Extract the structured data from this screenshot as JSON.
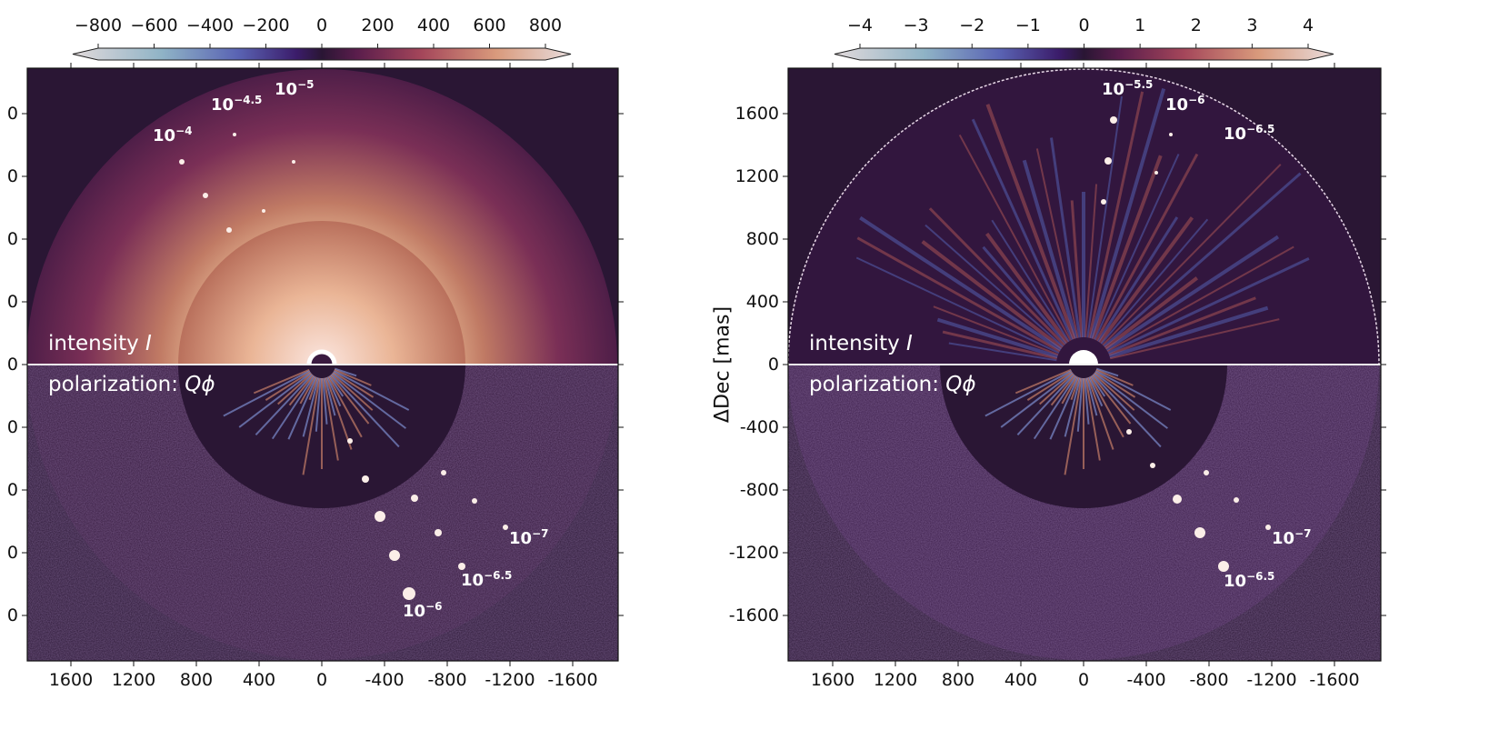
{
  "chart_data": [
    {
      "type": "heatmap",
      "panel": "left",
      "colorbar": {
        "ticks": [
          "−800",
          "−600",
          "−400",
          "−200",
          "0",
          "200",
          "400",
          "600",
          "800"
        ],
        "range": [
          -800,
          800
        ],
        "extend": "both",
        "colormap": "twilight_shifted"
      },
      "xticks": [
        "1600",
        "1200",
        "800",
        "400",
        "0",
        "-400",
        "-800",
        "-1200",
        "-1600"
      ],
      "yticks": [
        "0",
        "0",
        "0",
        "0",
        "0",
        "0",
        "0",
        "0",
        "0"
      ],
      "xlim": [
        1880,
        -1880
      ],
      "ylim": [
        -1880,
        1880
      ],
      "labels": {
        "top": "intensity ",
        "top_italic": "I",
        "bottom": "polarization: ",
        "bottom_italic": "Qϕ"
      },
      "annotations": [
        {
          "base": "10",
          "exp": "−4"
        },
        {
          "base": "10",
          "exp": "−4.5"
        },
        {
          "base": "10",
          "exp": "−5"
        },
        {
          "base": "10",
          "exp": "−7"
        },
        {
          "base": "10",
          "exp": "−6.5"
        },
        {
          "base": "10",
          "exp": "−6"
        }
      ]
    },
    {
      "type": "heatmap",
      "panel": "right",
      "colorbar": {
        "ticks": [
          "−4",
          "−3",
          "−2",
          "−1",
          "0",
          "1",
          "2",
          "3",
          "4"
        ],
        "range": [
          -4,
          4
        ],
        "extend": "both",
        "colormap": "twilight_shifted"
      },
      "xticks": [
        "1600",
        "1200",
        "800",
        "400",
        "0",
        "-400",
        "-800",
        "-1200",
        "-1600"
      ],
      "yticks": [
        "1600",
        "1200",
        "800",
        "400",
        "0",
        "-400",
        "-800",
        "-1200",
        "-1600"
      ],
      "ylabel": "ΔDec [mas]",
      "xlim": [
        1880,
        -1880
      ],
      "ylim": [
        -1880,
        1880
      ],
      "labels": {
        "top": "intensity ",
        "top_italic": "I",
        "bottom": "polarization: ",
        "bottom_italic": "Qϕ"
      },
      "annotations": [
        {
          "base": "10",
          "exp": "−5.5"
        },
        {
          "base": "10",
          "exp": "−6"
        },
        {
          "base": "10",
          "exp": "−6.5"
        },
        {
          "base": "10",
          "exp": "−7"
        },
        {
          "base": "10",
          "exp": "−6.5"
        }
      ]
    }
  ],
  "colors": {
    "background": "#2a1634",
    "bright": "#f3e6e0",
    "mid": "#b0604f"
  }
}
